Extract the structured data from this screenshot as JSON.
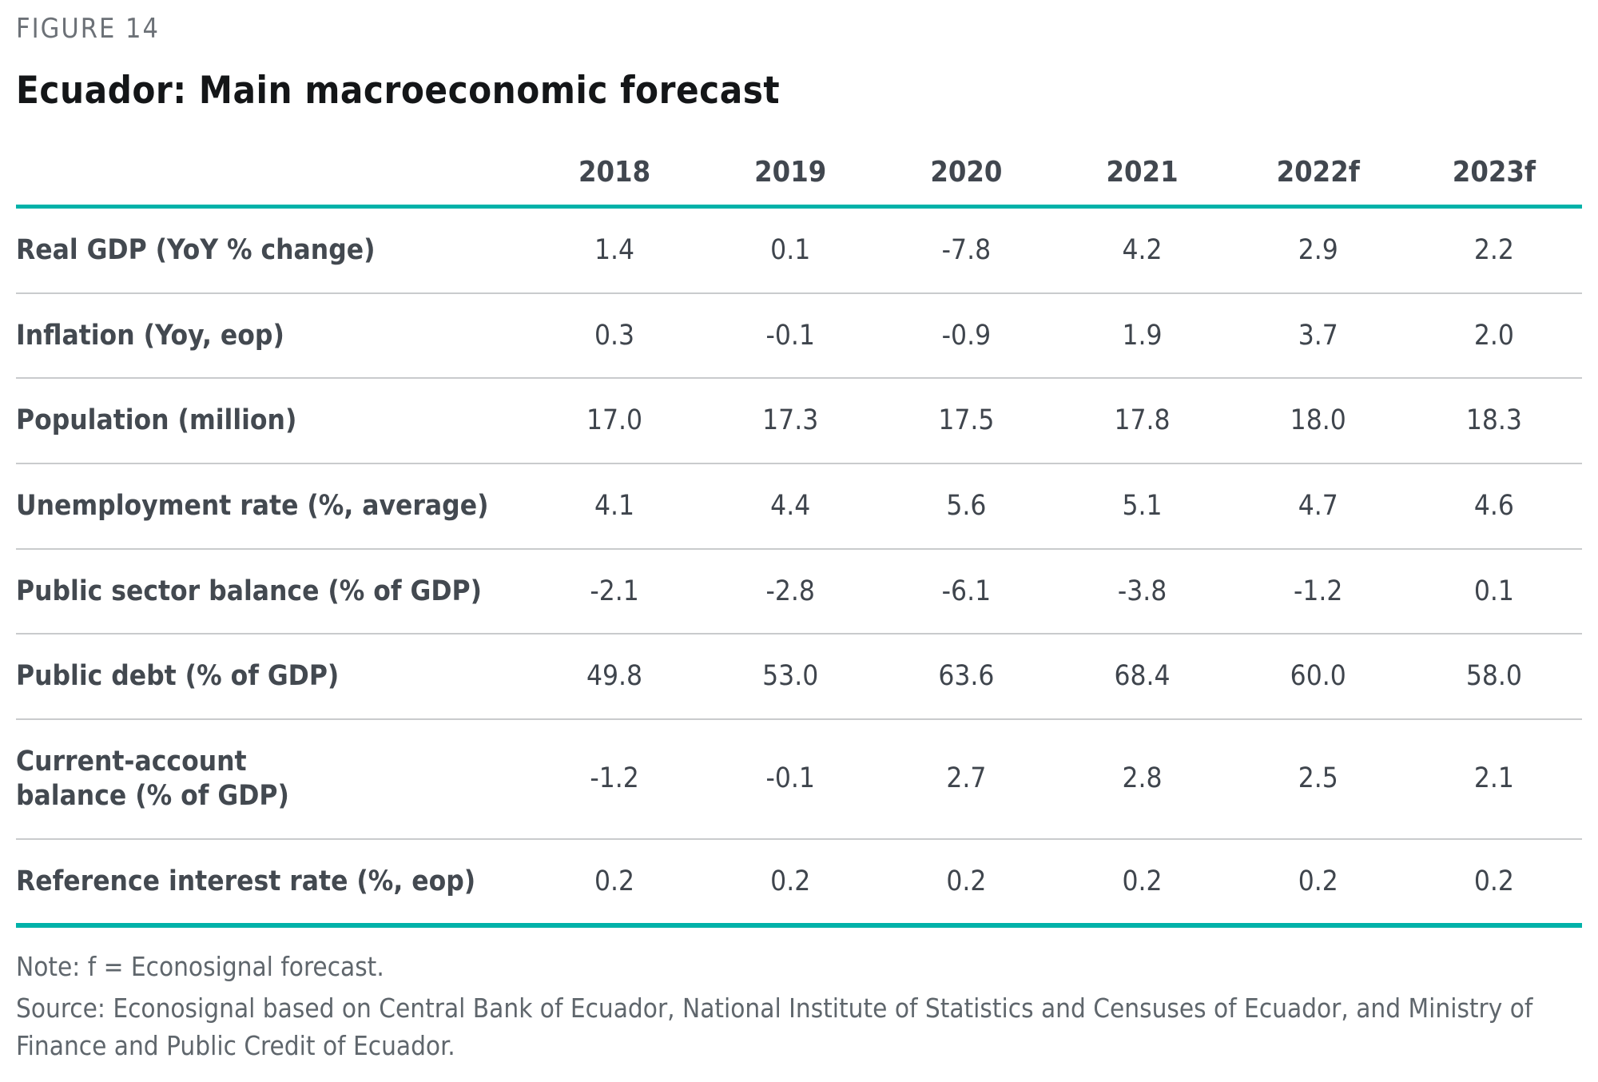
{
  "figure_label": "FIGURE 14",
  "title": "Ecuador: Main macroeconomic forecast",
  "chart_data": {
    "type": "table",
    "columns": [
      "2018",
      "2019",
      "2020",
      "2021",
      "2022f",
      "2023f"
    ],
    "rows": [
      {
        "label": "Real GDP (YoY % change)",
        "values": [
          "1.4",
          "0.1",
          "-7.8",
          "4.2",
          "2.9",
          "2.2"
        ]
      },
      {
        "label": "Inflation (Yoy, eop)",
        "values": [
          "0.3",
          "-0.1",
          "-0.9",
          "1.9",
          "3.7",
          "2.0"
        ]
      },
      {
        "label": "Population (million)",
        "values": [
          "17.0",
          "17.3",
          "17.5",
          "17.8",
          "18.0",
          "18.3"
        ]
      },
      {
        "label": "Unemployment rate (%, average)",
        "values": [
          "4.1",
          "4.4",
          "5.6",
          "5.1",
          "4.7",
          "4.6"
        ]
      },
      {
        "label": "Public sector balance (% of GDP)",
        "values": [
          "-2.1",
          "-2.8",
          "-6.1",
          "-3.8",
          "-1.2",
          "0.1"
        ]
      },
      {
        "label": "Public debt (% of GDP)",
        "values": [
          "49.8",
          "53.0",
          "63.6",
          "68.4",
          "60.0",
          "58.0"
        ]
      },
      {
        "label": "Current-account\nbalance (% of GDP)",
        "values": [
          "-1.2",
          "-0.1",
          "2.7",
          "2.8",
          "2.5",
          "2.1"
        ]
      },
      {
        "label": "Reference interest rate (%, eop)",
        "values": [
          "0.2",
          "0.2",
          "0.2",
          "0.2",
          "0.2",
          "0.2"
        ]
      }
    ],
    "title": "Ecuador: Main macroeconomic forecast",
    "legend": "none",
    "grid": "horizontal row dividers"
  },
  "notes": {
    "note": "Note: f = Econosignal forecast.",
    "source": "Source: Econosignal based on Central Bank of Ecuador, National Institute of Statistics and Censuses of Ecuador, and Ministry of Finance and Public Credit of Ecuador."
  },
  "colors": {
    "accent_teal": "#00B2A9",
    "title_text": "#141618",
    "header_text": "#41474F",
    "body_text": "#3F454D",
    "muted_text": "#6C7177",
    "row_divider": "#C9CBCD",
    "background": "#FFFFFF"
  }
}
